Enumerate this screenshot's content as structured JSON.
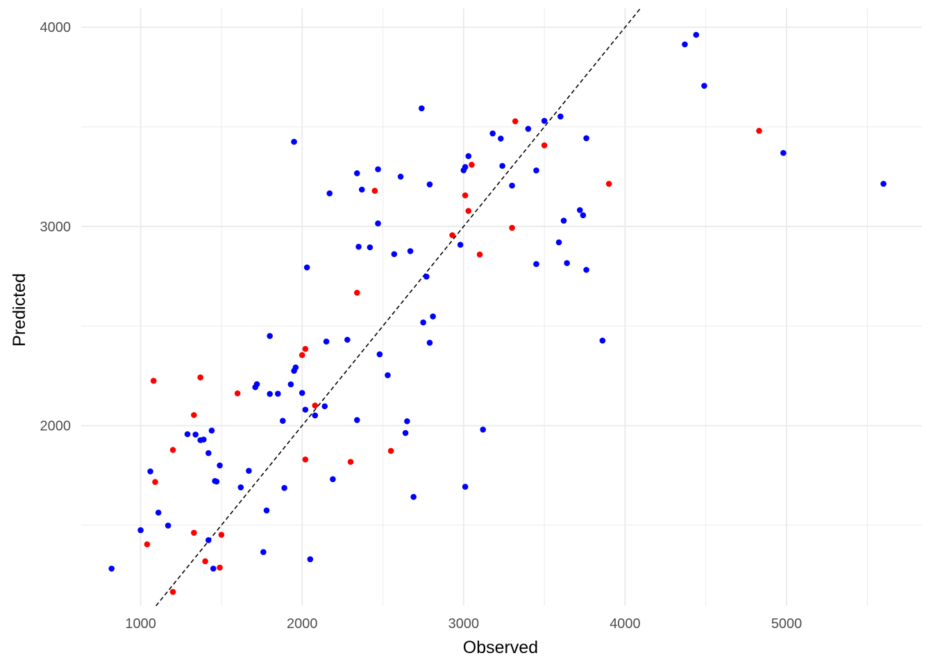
{
  "chart_data": {
    "type": "scatter",
    "title": "",
    "xlabel": "Observed",
    "ylabel": "Predicted",
    "xlim": [
      632,
      5838
    ],
    "ylim": [
      1095,
      4095
    ],
    "x_ticks": [
      1000,
      2000,
      3000,
      4000,
      5000
    ],
    "y_ticks": [
      2000,
      3000,
      4000
    ],
    "grid": true,
    "reference_line": {
      "type": "identity",
      "style": "dashed",
      "color": "#000000"
    },
    "colors": {
      "blue": "#0000ff",
      "red": "#ff0000",
      "grid": "#ebebeb"
    },
    "series": [
      {
        "color": "#0000ff",
        "points": [
          [
            820,
            1282
          ],
          [
            1000,
            1475
          ],
          [
            1060,
            1770
          ],
          [
            1110,
            1563
          ],
          [
            1170,
            1498
          ],
          [
            1290,
            1957
          ],
          [
            1340,
            1955
          ],
          [
            1370,
            1927
          ],
          [
            1390,
            1930
          ],
          [
            1420,
            1425
          ],
          [
            1420,
            1862
          ],
          [
            1440,
            1975
          ],
          [
            1450,
            1282
          ],
          [
            1460,
            1722
          ],
          [
            1470,
            1719
          ],
          [
            1490,
            1800
          ],
          [
            1620,
            1690
          ],
          [
            1670,
            1773
          ],
          [
            1710,
            2193
          ],
          [
            1720,
            2208
          ],
          [
            1760,
            1365
          ],
          [
            1780,
            1574
          ],
          [
            1800,
            2450
          ],
          [
            1800,
            2159
          ],
          [
            1850,
            2160
          ],
          [
            1880,
            2024
          ],
          [
            1890,
            1687
          ],
          [
            1930,
            2207
          ],
          [
            1950,
            2275
          ],
          [
            1950,
            3425
          ],
          [
            1960,
            2292
          ],
          [
            2000,
            2164
          ],
          [
            2020,
            2080
          ],
          [
            2030,
            2794
          ],
          [
            2050,
            1329
          ],
          [
            2080,
            2051
          ],
          [
            2140,
            2097
          ],
          [
            2150,
            2422
          ],
          [
            2170,
            3166
          ],
          [
            2190,
            1731
          ],
          [
            2280,
            2431
          ],
          [
            2340,
            2028
          ],
          [
            2340,
            3267
          ],
          [
            2350,
            2898
          ],
          [
            2370,
            3185
          ],
          [
            2420,
            2895
          ],
          [
            2470,
            3287
          ],
          [
            2470,
            3015
          ],
          [
            2480,
            2358
          ],
          [
            2530,
            2253
          ],
          [
            2570,
            2861
          ],
          [
            2610,
            3250
          ],
          [
            2640,
            1963
          ],
          [
            2650,
            2022
          ],
          [
            2670,
            2876
          ],
          [
            2690,
            1642
          ],
          [
            2740,
            3593
          ],
          [
            2750,
            2518
          ],
          [
            2770,
            2748
          ],
          [
            2790,
            3211
          ],
          [
            2790,
            2416
          ],
          [
            2810,
            2548
          ],
          [
            2980,
            2908
          ],
          [
            3000,
            3282
          ],
          [
            3010,
            3298
          ],
          [
            3010,
            1693
          ],
          [
            3030,
            3353
          ],
          [
            3120,
            1980
          ],
          [
            3180,
            3467
          ],
          [
            3230,
            3441
          ],
          [
            3240,
            3304
          ],
          [
            3300,
            3205
          ],
          [
            3400,
            3490
          ],
          [
            3450,
            3281
          ],
          [
            3450,
            2811
          ],
          [
            3500,
            3530
          ],
          [
            3590,
            2920
          ],
          [
            3600,
            3552
          ],
          [
            3620,
            3029
          ],
          [
            3640,
            2816
          ],
          [
            3720,
            3082
          ],
          [
            3740,
            3056
          ],
          [
            3760,
            2782
          ],
          [
            3760,
            3443
          ],
          [
            3860,
            2427
          ],
          [
            4370,
            3914
          ],
          [
            4440,
            3962
          ],
          [
            4490,
            3706
          ],
          [
            4980,
            3369
          ],
          [
            5600,
            3214
          ]
        ]
      },
      {
        "color": "#ff0000",
        "points": [
          [
            1040,
            1404
          ],
          [
            1080,
            2225
          ],
          [
            1090,
            1717
          ],
          [
            1200,
            1878
          ],
          [
            1200,
            1165
          ],
          [
            1330,
            2053
          ],
          [
            1330,
            1462
          ],
          [
            1370,
            2242
          ],
          [
            1400,
            1319
          ],
          [
            1490,
            1287
          ],
          [
            1500,
            1452
          ],
          [
            1600,
            2162
          ],
          [
            2000,
            2354
          ],
          [
            2020,
            1830
          ],
          [
            2020,
            2385
          ],
          [
            2080,
            2101
          ],
          [
            2300,
            1818
          ],
          [
            2340,
            2667
          ],
          [
            2450,
            3179
          ],
          [
            2550,
            1873
          ],
          [
            2930,
            2956
          ],
          [
            3010,
            3156
          ],
          [
            3030,
            3078
          ],
          [
            3050,
            3310
          ],
          [
            3100,
            2859
          ],
          [
            3300,
            2993
          ],
          [
            3320,
            3528
          ],
          [
            3500,
            3407
          ],
          [
            3900,
            3214
          ],
          [
            4830,
            3480
          ]
        ]
      }
    ]
  }
}
